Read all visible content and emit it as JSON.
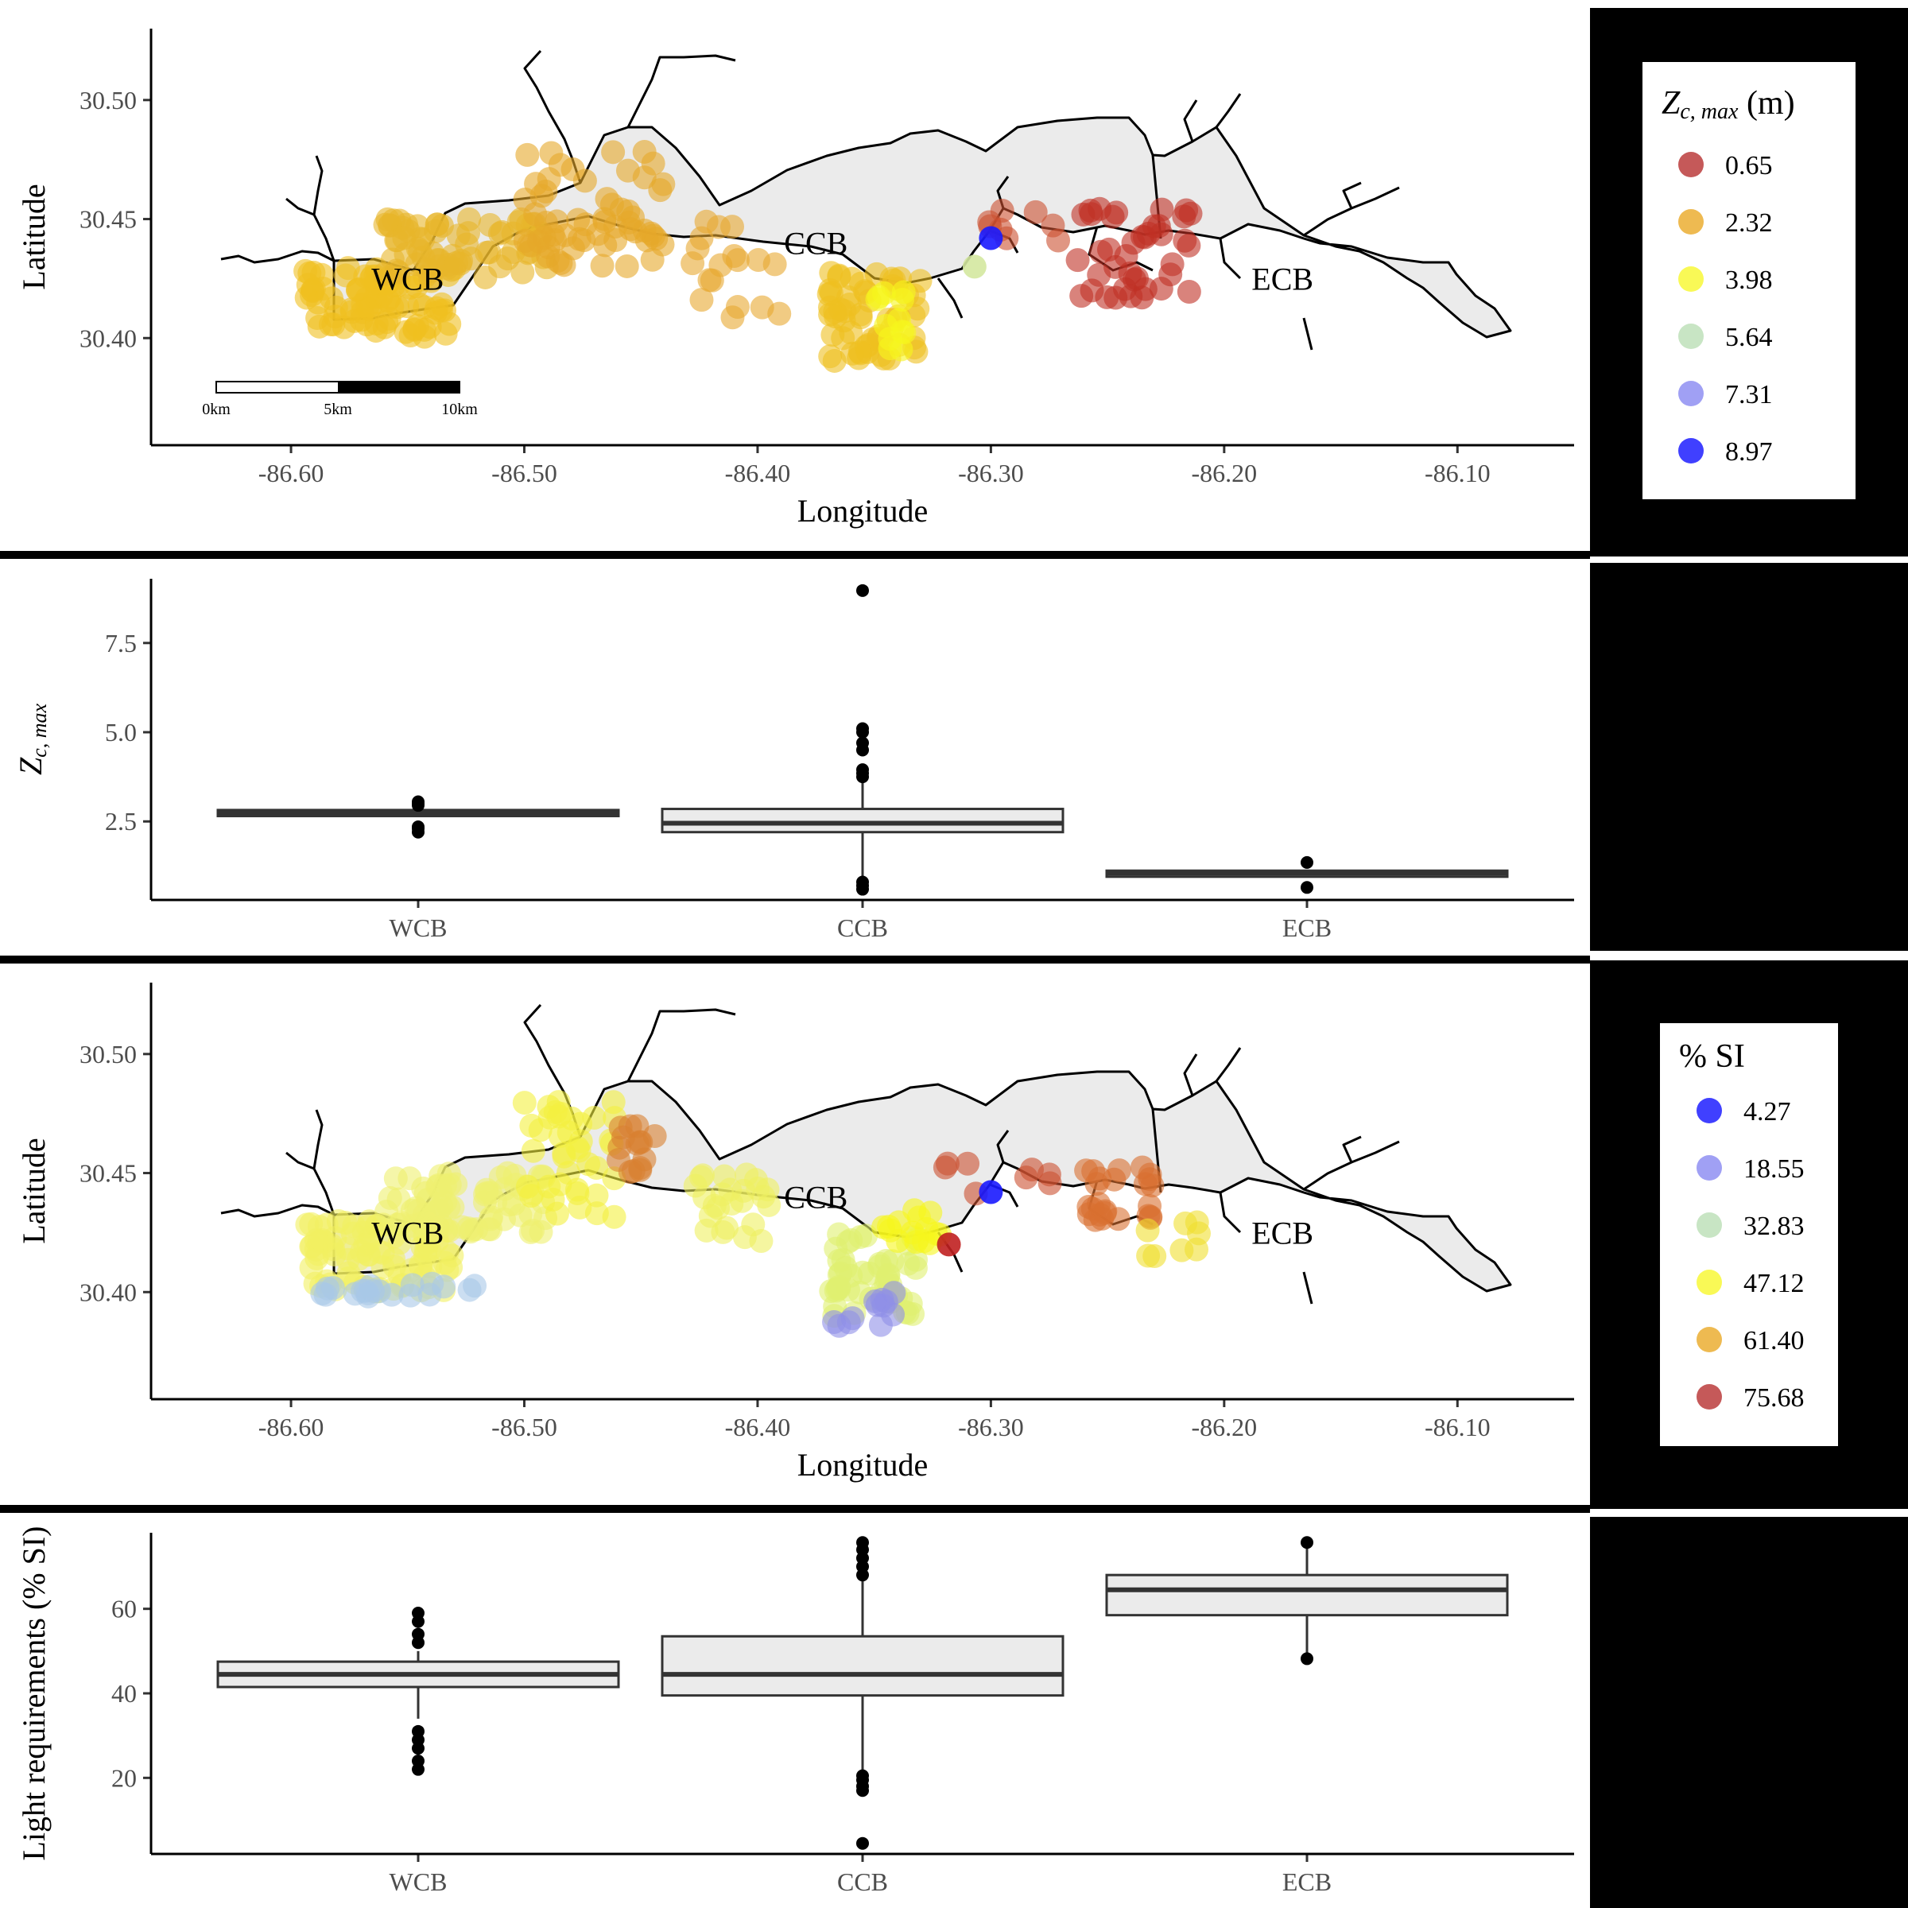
{
  "chart_data": [
    {
      "type": "scatter",
      "panel": "map_zc",
      "xlabel": "Longitude",
      "ylabel": "Latitude",
      "xlim": [
        -86.66,
        -86.05
      ],
      "ylim": [
        30.355,
        30.53
      ],
      "xticks": [
        "-86.60",
        "-86.50",
        "-86.40",
        "-86.30",
        "-86.20",
        "-86.10"
      ],
      "xtick_values": [
        -86.6,
        -86.5,
        -86.4,
        -86.3,
        -86.2,
        -86.1
      ],
      "yticks": [
        "30.40",
        "30.45",
        "30.50"
      ],
      "ytick_values": [
        30.4,
        30.45,
        30.5
      ],
      "region_labels": [
        "WCB",
        "CCB",
        "ECB"
      ],
      "region_label_positions": [
        [
          -86.55,
          30.425
        ],
        [
          -86.375,
          30.44
        ],
        [
          -86.175,
          30.425
        ]
      ],
      "scale_bar": [
        "0km",
        "5km",
        "10km"
      ],
      "legend": {
        "title_main": "Z",
        "title_sub": "c, max",
        "title_unit": " (m)",
        "entries": [
          {
            "label": "0.65",
            "color": "#b22222"
          },
          {
            "label": "2.32",
            "color": "#e8a317"
          },
          {
            "label": "3.98",
            "color": "#f7f71d"
          },
          {
            "label": "5.64",
            "color": "#b5dcb0"
          },
          {
            "label": "7.31",
            "color": "#8080f0"
          },
          {
            "label": "8.97",
            "color": "#0000ff"
          }
        ]
      },
      "clusters": [
        {
          "name": "WCB west",
          "x": [
            -86.595,
            -86.53
          ],
          "y": [
            30.4,
            30.43
          ],
          "color": "#f0c020",
          "n": 90
        },
        {
          "name": "WCB north",
          "x": [
            -86.56,
            -86.49
          ],
          "y": [
            30.425,
            30.45
          ],
          "color": "#e8b52a",
          "n": 70
        },
        {
          "name": "WCB northeast",
          "x": [
            -86.5,
            -86.44
          ],
          "y": [
            30.43,
            30.48
          ],
          "color": "#e6a92a",
          "n": 60
        },
        {
          "name": "CCB west",
          "x": [
            -86.43,
            -86.39
          ],
          "y": [
            30.405,
            30.45
          ],
          "color": "#e8a830",
          "n": 18
        },
        {
          "name": "CCB south",
          "x": [
            -86.37,
            -86.33
          ],
          "y": [
            30.39,
            30.43
          ],
          "color": "#eec020",
          "n": 60
        },
        {
          "name": "CCB yellow",
          "x": [
            -86.35,
            -86.335
          ],
          "y": [
            30.395,
            30.42
          ],
          "color": "#f7f71d",
          "n": 12
        },
        {
          "name": "CCB east",
          "x": [
            -86.32,
            -86.27
          ],
          "y": [
            30.44,
            30.455
          ],
          "color": "#cc5030",
          "n": 8
        },
        {
          "name": "ECB",
          "x": [
            -86.27,
            -86.21
          ],
          "y": [
            30.415,
            30.455
          ],
          "color": "#c03025",
          "n": 40
        }
      ],
      "highlight_points": [
        {
          "x": -86.3,
          "y": 30.442,
          "color": "#1a1aff"
        },
        {
          "x": -86.307,
          "y": 30.43,
          "color": "#d4e8a0"
        }
      ]
    },
    {
      "type": "box",
      "panel": "box_zc",
      "ylabel_main": "Z",
      "ylabel_sub": "c, max",
      "categories": [
        "WCB",
        "CCB",
        "ECB"
      ],
      "ylim": [
        0.3,
        9.3
      ],
      "yticks": [
        "2.5",
        "5.0",
        "7.5"
      ],
      "ytick_values": [
        2.5,
        5.0,
        7.5
      ],
      "boxes": [
        {
          "q1": 2.65,
          "median": 2.75,
          "q3": 2.82,
          "whisker_low": 2.65,
          "whisker_high": 2.82,
          "outliers": [
            2.2,
            2.3,
            2.35,
            2.95,
            3.0,
            3.05
          ]
        },
        {
          "q1": 2.2,
          "median": 2.45,
          "q3": 2.85,
          "whisker_low": 0.9,
          "whisker_high": 3.6,
          "outliers": [
            0.6,
            0.7,
            0.8,
            3.75,
            3.85,
            3.95,
            4.5,
            4.7,
            5.0,
            5.1,
            8.97
          ]
        },
        {
          "q1": 0.95,
          "median": 1.05,
          "q3": 1.12,
          "whisker_low": 0.95,
          "whisker_high": 1.12,
          "outliers": [
            0.65,
            1.35
          ]
        }
      ]
    },
    {
      "type": "scatter",
      "panel": "map_si",
      "xlabel": "Longitude",
      "ylabel": "Latitude",
      "xlim": [
        -86.66,
        -86.05
      ],
      "ylim": [
        30.355,
        30.53
      ],
      "xticks": [
        "-86.60",
        "-86.50",
        "-86.40",
        "-86.30",
        "-86.20",
        "-86.10"
      ],
      "xtick_values": [
        -86.6,
        -86.5,
        -86.4,
        -86.3,
        -86.2,
        -86.1
      ],
      "yticks": [
        "30.40",
        "30.45",
        "30.50"
      ],
      "ytick_values": [
        30.4,
        30.45,
        30.5
      ],
      "region_labels": [
        "WCB",
        "CCB",
        "ECB"
      ],
      "region_label_positions": [
        [
          -86.55,
          30.425
        ],
        [
          -86.375,
          30.44
        ],
        [
          -86.175,
          30.425
        ]
      ],
      "legend": {
        "title": "% SI",
        "entries": [
          {
            "label": "4.27",
            "color": "#0000ff"
          },
          {
            "label": "18.55",
            "color": "#8080f0"
          },
          {
            "label": "32.83",
            "color": "#b5dcb0"
          },
          {
            "label": "47.12",
            "color": "#f7f71d"
          },
          {
            "label": "61.40",
            "color": "#e8a317"
          },
          {
            "label": "75.68",
            "color": "#b22222"
          }
        ]
      },
      "clusters": [
        {
          "name": "WCB west",
          "x": [
            -86.595,
            -86.53
          ],
          "y": [
            30.4,
            30.43
          ],
          "color": "#f2f060",
          "n": 90
        },
        {
          "name": "WCB south edge",
          "x": [
            -86.59,
            -86.52
          ],
          "y": [
            30.398,
            30.405
          ],
          "color": "#a8c8e8",
          "n": 20
        },
        {
          "name": "WCB north",
          "x": [
            -86.56,
            -86.49
          ],
          "y": [
            30.425,
            30.45
          ],
          "color": "#eef070",
          "n": 70
        },
        {
          "name": "WCB northeast",
          "x": [
            -86.5,
            -86.46
          ],
          "y": [
            30.43,
            30.48
          ],
          "color": "#f4f040",
          "n": 40
        },
        {
          "name": "WCB northeast orange",
          "x": [
            -86.46,
            -86.44
          ],
          "y": [
            30.45,
            30.47
          ],
          "color": "#d88030",
          "n": 15
        },
        {
          "name": "CCB west",
          "x": [
            -86.43,
            -86.39
          ],
          "y": [
            30.42,
            30.45
          ],
          "color": "#eef060",
          "n": 25
        },
        {
          "name": "CCB south",
          "x": [
            -86.37,
            -86.33
          ],
          "y": [
            30.39,
            30.425
          ],
          "color": "#e0f070",
          "n": 50
        },
        {
          "name": "CCB blue",
          "x": [
            -86.37,
            -86.34
          ],
          "y": [
            30.385,
            30.4
          ],
          "color": "#9090e8",
          "n": 12
        },
        {
          "name": "CCB yellow",
          "x": [
            -86.35,
            -86.32
          ],
          "y": [
            30.42,
            30.435
          ],
          "color": "#f7f71d",
          "n": 15
        },
        {
          "name": "CCB east",
          "x": [
            -86.32,
            -86.27
          ],
          "y": [
            30.44,
            30.455
          ],
          "color": "#cc5030",
          "n": 8
        },
        {
          "name": "ECB",
          "x": [
            -86.26,
            -86.23
          ],
          "y": [
            30.43,
            30.455
          ],
          "color": "#d87030",
          "n": 25
        },
        {
          "name": "ECB east yellow",
          "x": [
            -86.24,
            -86.21
          ],
          "y": [
            30.415,
            30.43
          ],
          "color": "#f0e030",
          "n": 8
        }
      ],
      "highlight_points": [
        {
          "x": -86.3,
          "y": 30.442,
          "color": "#1a1aff"
        },
        {
          "x": -86.318,
          "y": 30.42,
          "color": "#c02020"
        }
      ]
    },
    {
      "type": "box",
      "panel": "box_si",
      "ylabel": "Light requirements (% SI)",
      "categories": [
        "WCB",
        "CCB",
        "ECB"
      ],
      "ylim": [
        2,
        78
      ],
      "yticks": [
        "20",
        "40",
        "60"
      ],
      "ytick_values": [
        20,
        40,
        60
      ],
      "boxes": [
        {
          "q1": 41.5,
          "median": 44.5,
          "q3": 47.5,
          "whisker_low": 34,
          "whisker_high": 50,
          "outliers": [
            22,
            24,
            27,
            29,
            31,
            52,
            54,
            57,
            59
          ]
        },
        {
          "q1": 39.5,
          "median": 44.5,
          "q3": 53.5,
          "whisker_low": 21,
          "whisker_high": 67,
          "outliers": [
            4.5,
            17,
            18,
            19.5,
            20.5,
            68,
            70,
            72,
            74,
            75.7
          ]
        },
        {
          "q1": 58.5,
          "median": 64.5,
          "q3": 68,
          "whisker_low": 48,
          "whisker_high": 75.68,
          "outliers": [
            48.2,
            75.7
          ]
        }
      ]
    }
  ]
}
